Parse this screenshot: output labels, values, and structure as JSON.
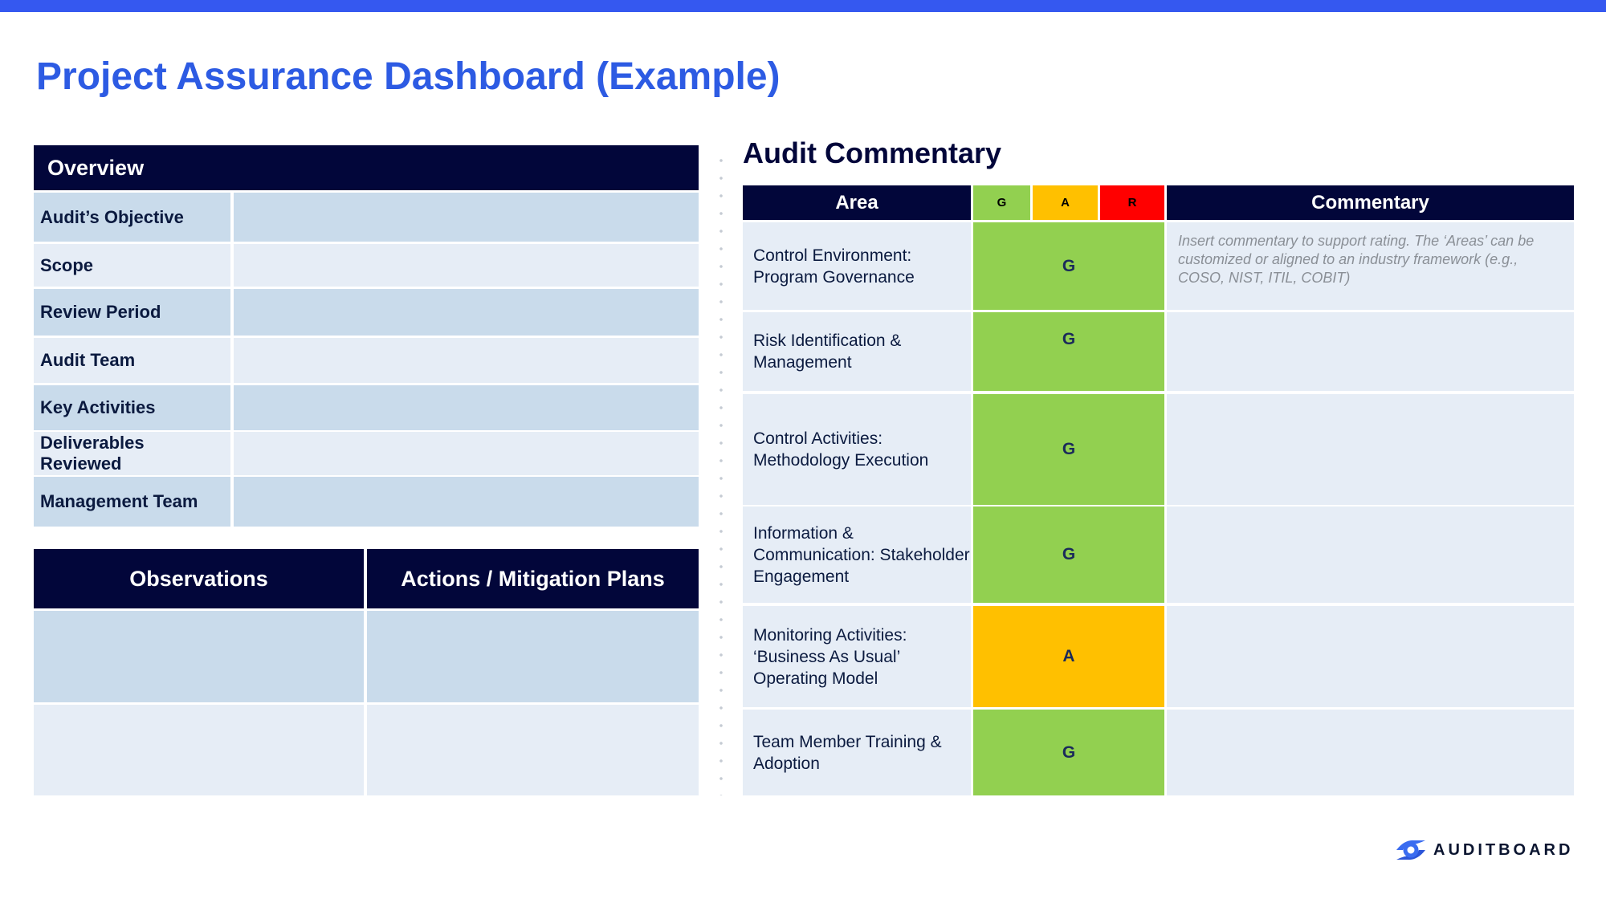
{
  "title": "Project Assurance Dashboard (Example)",
  "overview": {
    "header": "Overview",
    "rows": [
      "Audit’s Objective",
      "Scope",
      "Review Period",
      "Audit Team",
      "Key Activities",
      "Deliverables Reviewed",
      "Management Team"
    ]
  },
  "observations": {
    "col1": "Observations",
    "col2": "Actions / Mitigation Plans"
  },
  "audit": {
    "title": "Audit Commentary",
    "headers": {
      "area": "Area",
      "g": "G",
      "a": "A",
      "r": "R",
      "commentary": "Commentary"
    },
    "rows": [
      {
        "area": "Control Environment: Program Governance",
        "rating": "G",
        "commentary": "Insert commentary to support rating.  The ‘Areas’ can be customized or aligned to an industry framework (e.g., COSO, NIST, ITIL, COBIT)"
      },
      {
        "area": "Risk Identification & Management",
        "rating": "G",
        "commentary": ""
      },
      {
        "area": "Control Activities: Methodology Execution",
        "rating": "G",
        "commentary": ""
      },
      {
        "area": "Information & Communication: Stakeholder Engagement",
        "rating": "G",
        "commentary": ""
      },
      {
        "area": "Monitoring Activities: ‘Business As Usual’ Operating Model",
        "rating": "A",
        "commentary": ""
      },
      {
        "area": "Team Member Training & Adoption",
        "rating": "G",
        "commentary": ""
      }
    ]
  },
  "colors": {
    "accent": "#3558f0",
    "navy": "#02063a",
    "green": "#92d050",
    "amber": "#ffc000",
    "red": "#ff0000"
  },
  "logo": {
    "text": "AUDITBOARD",
    "icon": "auditboard-logo-icon"
  }
}
